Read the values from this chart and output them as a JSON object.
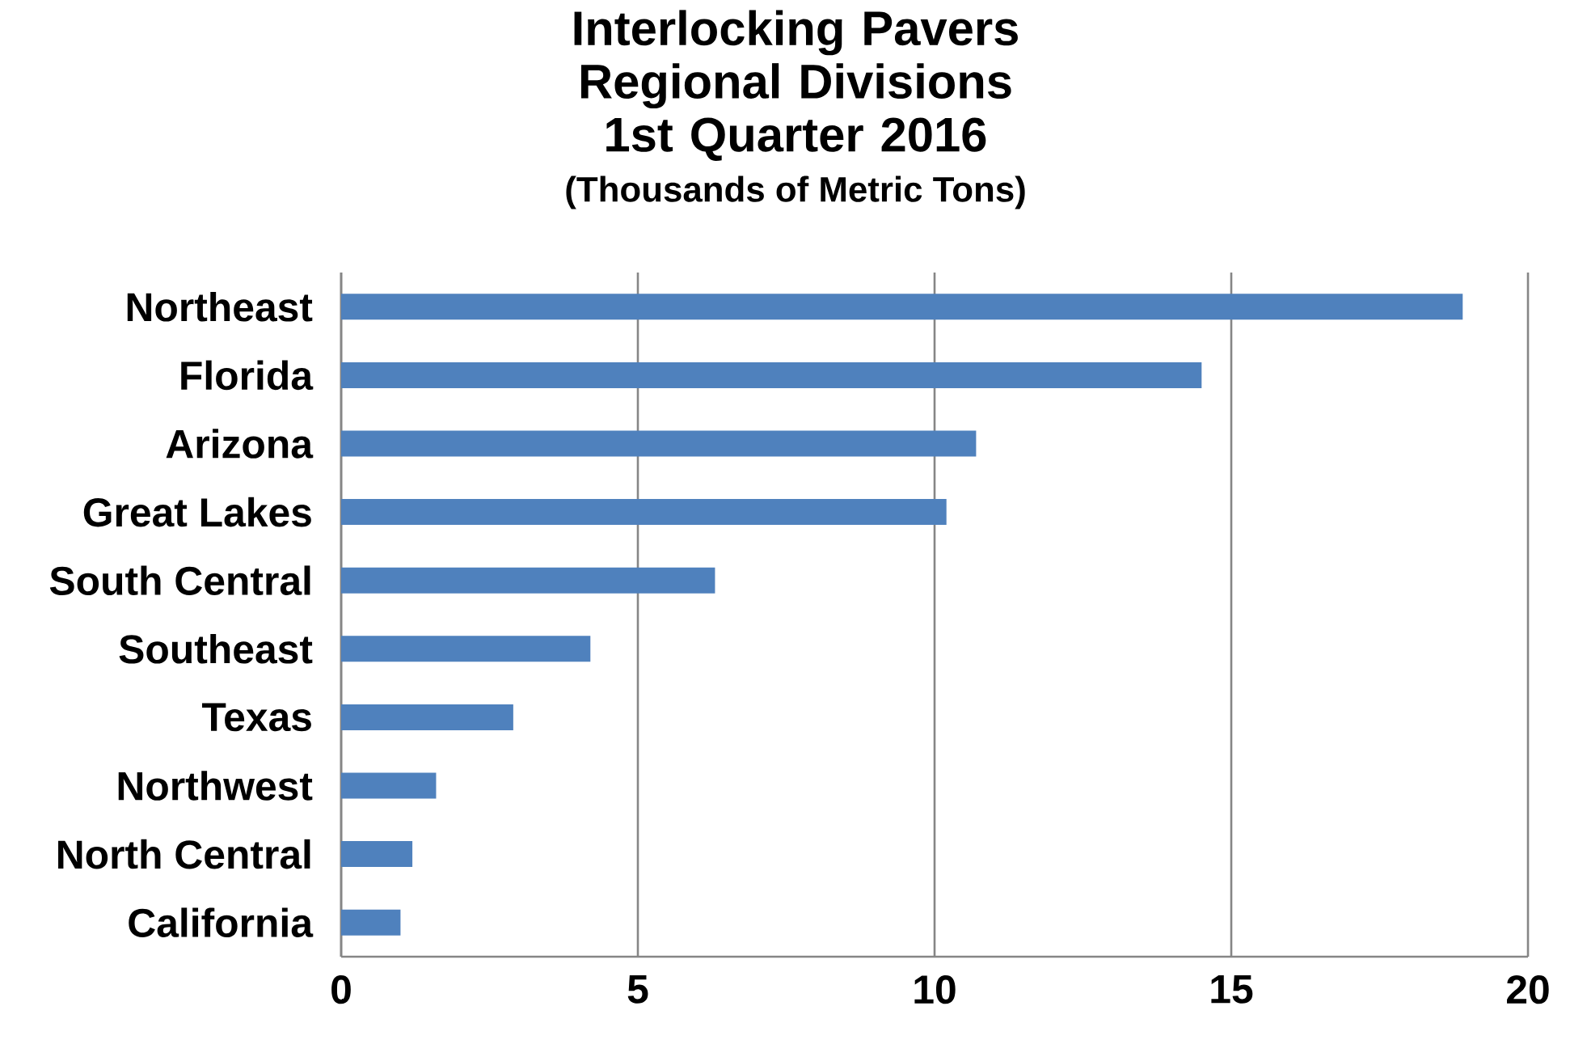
{
  "chart_data": {
    "type": "bar",
    "orientation": "horizontal",
    "title": "Interlocking Pavers Regional Divisions 1st Quarter 2016",
    "subtitle": "(Thousands of Metric Tons)",
    "categories": [
      "Northeast",
      "Florida",
      "Arizona",
      "Great Lakes",
      "South Central",
      "Southeast",
      "Texas",
      "Northwest",
      "North Central",
      "California"
    ],
    "values": [
      18.9,
      14.5,
      10.7,
      10.2,
      6.3,
      4.2,
      2.9,
      1.6,
      1.2,
      1.0
    ],
    "color": "#4f81bd",
    "xlim": [
      0,
      20
    ],
    "xticks": [
      0,
      5,
      10,
      15,
      20
    ],
    "grid": "x"
  }
}
